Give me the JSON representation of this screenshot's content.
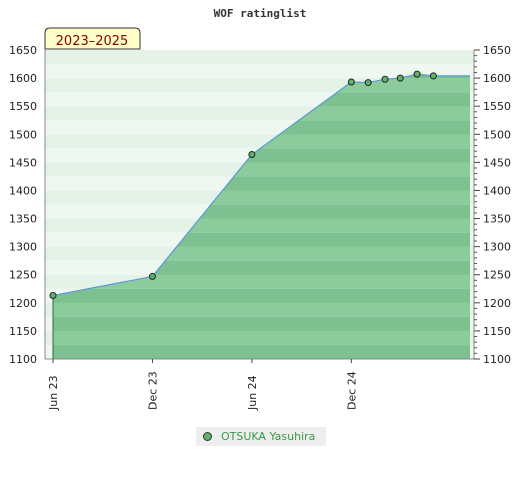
{
  "chart_data": {
    "type": "area",
    "title": "WOF ratinglist",
    "badge": "2023–2025",
    "xlabel": "",
    "ylabel": "",
    "ylim": [
      1100,
      1650
    ],
    "yticks": [
      1100,
      1150,
      1200,
      1250,
      1300,
      1350,
      1400,
      1450,
      1500,
      1550,
      1600,
      1650
    ],
    "xlim": [
      "2023-06-01",
      "2025-06-30"
    ],
    "xticks": [
      {
        "date": "2023-06-01",
        "label": "Jun 23"
      },
      {
        "date": "2023-12-01",
        "label": "Dec 23"
      },
      {
        "date": "2024-06-01",
        "label": "Jun 24"
      },
      {
        "date": "2024-12-01",
        "label": "Dec 24"
      }
    ],
    "grid": true,
    "legend_position": "bottom",
    "series": [
      {
        "name": "OTSUKA Yasuhira",
        "color": "#5fb36b",
        "line_color": "#5b9bd5",
        "points": [
          {
            "date": "2023-06-01",
            "value": 1213
          },
          {
            "date": "2023-12-01",
            "value": 1247
          },
          {
            "date": "2024-06-01",
            "value": 1464
          },
          {
            "date": "2024-12-01",
            "value": 1593
          },
          {
            "date": "2025-01-01",
            "value": 1592
          },
          {
            "date": "2025-02-01",
            "value": 1598
          },
          {
            "date": "2025-03-01",
            "value": 1600
          },
          {
            "date": "2025-04-01",
            "value": 1607
          },
          {
            "date": "2025-05-01",
            "value": 1604
          }
        ]
      }
    ]
  },
  "legend": {
    "label": "OTSUKA Yasuhira"
  }
}
